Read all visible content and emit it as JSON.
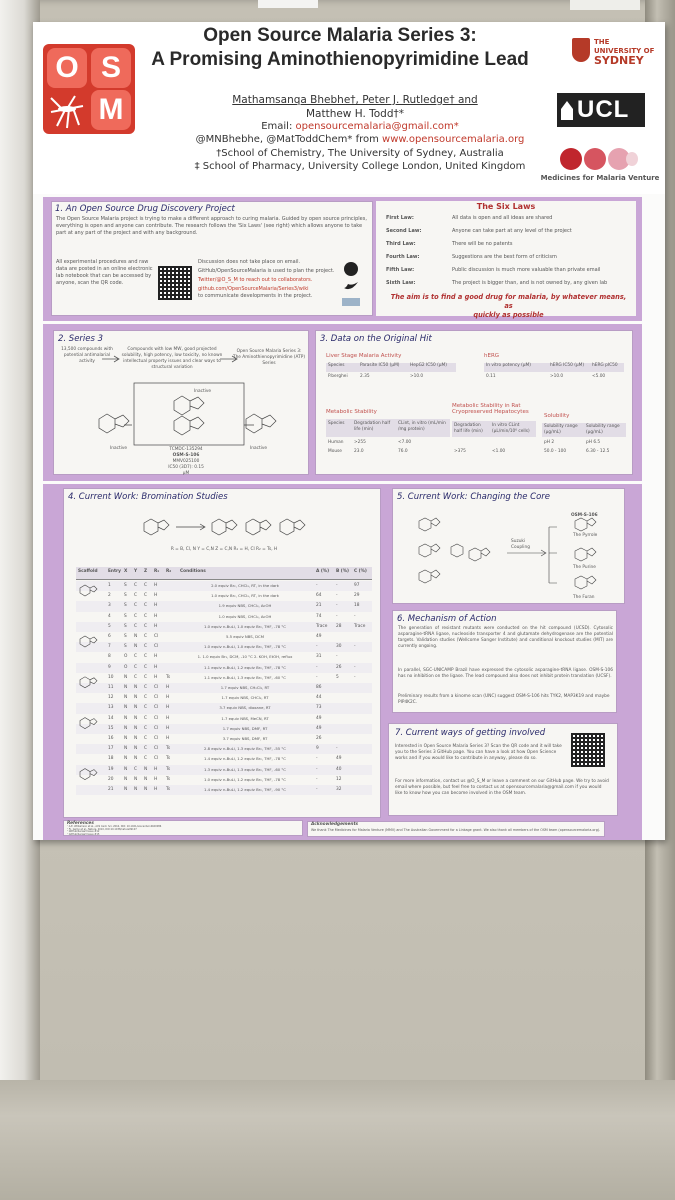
{
  "poster": {
    "logo": {
      "letters": [
        "O",
        "S",
        "M"
      ],
      "icon": "mosquito-icon",
      "color": "#d33a2c"
    },
    "title_lines": [
      "Open Source Malaria Series 3:",
      "A Promising Aminothienopyrimidine Lead"
    ],
    "authors": [
      "Mathamsanqa Bhebhe†, Peter J. Rutledge† and",
      "Matthew H. Todd†*"
    ],
    "email_label": "Email:",
    "email": "opensourcemalaria@gmail.com*",
    "social_prefix": "@MNBhebhe, @MatToddChem* from",
    "website": "www.opensourcemalaria.org",
    "affiliation_1": "†School of Chemistry, The University of Sydney, Australia",
    "affiliation_2": "‡ School of Pharmacy, University College London, United Kingdom",
    "sydney": {
      "line1": "THE UNIVERSITY OF",
      "line2": "SYDNEY"
    },
    "ucl": "UCL",
    "mmv_label": "Medicines for Malaria Venture",
    "colors": {
      "panel": "#c9a6d6",
      "accent_red": "#b03030",
      "osm_red": "#d33a2c"
    }
  },
  "section1": {
    "title": "1. An Open Source Drug Discovery Project",
    "intro": "The Open Source Malaria project is trying to make a different approach to curing malaria. Guided by open source principles, everything is open and anyone can contribute. The research follows the 'Six Laws' (see right) which allows anyone to take part at any part of the project and with any background.",
    "left_text": "All experimental procedures and raw data are posted in an online electronic lab notebook that can be accessed by anyone, scan the QR code.",
    "right_text_1": "Discussion does not take place on email.",
    "right_text_2": "GitHub/OpenSourceMalaria is used to plan the project.",
    "right_text_3": "Twitter/@O_S_M to reach out to collaborators.",
    "right_text_4": "github.com/OpenSourceMalaria/Series3/wiki",
    "right_text_5": "to communicate developments in the project.",
    "six_laws_title": "The Six Laws",
    "laws": [
      {
        "label": "First Law:",
        "text": "All data is open and all ideas are shared"
      },
      {
        "label": "Second Law:",
        "text": "Anyone can take part at any level of the project"
      },
      {
        "label": "Third Law:",
        "text": "There will be no patents"
      },
      {
        "label": "Fourth Law:",
        "text": "Suggestions are the best form of criticism"
      },
      {
        "label": "Fifth Law:",
        "text": "Public discussion is much more valuable than private email"
      },
      {
        "label": "Sixth Law:",
        "text": "The project is bigger than, and is not owned by, any given lab"
      }
    ],
    "aim_1": "The aim is to find a good drug for malaria, by whatever means, as",
    "aim_2": "quickly as possible"
  },
  "section2": {
    "title": "2. Series 3",
    "flow": [
      "13,500 compounds with potential antimalarial activity",
      "Compounds with low MW, good projected solubility, high potency, low toxicity, no known intellectual property issues and clear ways to structural variation",
      "Open Source Malaria Series 3: The Aminothienopyrimidine (ATP) Series"
    ],
    "labels": [
      "Inactive",
      "Inactive",
      "Inactive"
    ],
    "compound": [
      "TCMDC-135294",
      "OSM-S-106",
      "MMV025100",
      "IC50 (3D7): 0.15 µM"
    ]
  },
  "section3": {
    "title": "3. Data on the Original Hit",
    "liver_title": "Liver Stage Malaria Activity",
    "liver_headers": [
      "Species",
      "Parasite IC50 (µM)",
      "HepG2 IC50 (µM)"
    ],
    "liver_row": [
      "P.berghei",
      "2.35",
      ">10.0"
    ],
    "herg_title": "hERG",
    "herg_headers": [
      "In vitro potency (µM)",
      "hERG IC50 (µM)",
      "hERG pIC50"
    ],
    "herg_row": [
      "0.11",
      ">10.0",
      "<5.00"
    ],
    "metab_title": "Metabolic Stability",
    "metab_headers": [
      "Species",
      "Degradation half life (min)",
      "CLint, in vitro (mL/min /mg protein)"
    ],
    "metab_rows": [
      [
        "Human",
        ">255",
        "<7.00"
      ],
      [
        "Mouse",
        "23.0",
        "76.0"
      ]
    ],
    "rat_title": "Metabolic Stability in Rat Cryopreserved Hepatocytes",
    "rat_headers": [
      "Degradation half life (min)",
      "In vitro CLint (µL/min/10⁶ cells)"
    ],
    "rat_row": [
      ">375",
      "<1.00"
    ],
    "sol_title": "Solubility",
    "sol_headers": [
      "Solubility range (µg/mL)",
      "Solubility range (µg/mL)"
    ],
    "sol_rows": [
      [
        "pH 2",
        "pH 6.5"
      ],
      [
        "50.0 - 100",
        "6.30 - 12.5"
      ]
    ]
  },
  "section4": {
    "title": "4. Current Work: Bromination Studies",
    "scheme_caption": "R = B, Cl, N    Y = C,N    Z = C,N    R₁ = H, Cl    R₂ = Ts, H",
    "headers": [
      "Scaffold",
      "Entry",
      "X",
      "Y",
      "Z",
      "R₁",
      "R₂",
      "Conditions",
      "A (%)",
      "B (%)",
      "C (%)"
    ],
    "rows": [
      [
        "1",
        "S",
        "C",
        "C",
        "H",
        "",
        "2.0 equiv Br₂, CHCl₃, RT, in the dark",
        "-",
        "-",
        "97"
      ],
      [
        "2",
        "S",
        "C",
        "C",
        "H",
        "",
        "1.0 equiv Br₂, CHCl₃, RT, in the dark",
        "64",
        "-",
        "29"
      ],
      [
        "3",
        "S",
        "C",
        "C",
        "H",
        "",
        "1.9 equiv NBS, CHCl₃, AcOH",
        "21",
        "-",
        "18"
      ],
      [
        "4",
        "S",
        "C",
        "C",
        "H",
        "",
        "1.0 equiv NBS, CHCl₃, AcOH",
        "74",
        "-",
        "-"
      ],
      [
        "5",
        "S",
        "C",
        "C",
        "H",
        "",
        "1.0 equiv n-BuLi, 1.0 equiv Br₂, THF, -78 °C",
        "Trace",
        "28",
        "Trace"
      ],
      [
        "6",
        "S",
        "N",
        "C",
        "Cl",
        "",
        "5.5 equiv NBS, DCM",
        "49",
        "",
        ""
      ],
      [
        "7",
        "S",
        "N",
        "C",
        "Cl",
        "",
        "1.0 equiv n-BuLi, 1.0 equiv Br₂, THF, -78 °C",
        "-",
        "30",
        "-"
      ],
      [
        "8",
        "O",
        "C",
        "C",
        "H",
        "",
        "1. 1.0 equiv Br₂, DCM, -10 °C  2. KOH, EtOH, reflux",
        "31",
        "-",
        ""
      ],
      [
        "9",
        "O",
        "C",
        "C",
        "H",
        "",
        "1.1 equiv n-BuLi, 1.2 equiv Br₂, THF, -78 °C",
        "-",
        "26",
        "-"
      ],
      [
        "10",
        "N",
        "C",
        "C",
        "H",
        "Ts",
        "1.1 equiv n-BuLi, 1.3 equiv Br₂, THF, -60 °C",
        "-",
        "5",
        "-"
      ],
      [
        "11",
        "N",
        "N",
        "C",
        "Cl",
        "H",
        "1.7 equiv NBS, CH₂Cl₂, RT",
        "86",
        "",
        ""
      ],
      [
        "12",
        "N",
        "N",
        "C",
        "Cl",
        "H",
        "1.7 equiv NBS, CHCl₃, RT",
        "44",
        "",
        ""
      ],
      [
        "13",
        "N",
        "N",
        "C",
        "Cl",
        "H",
        "3.7 equiv NBS, dioxane, RT",
        "73",
        "",
        ""
      ],
      [
        "14",
        "N",
        "N",
        "C",
        "Cl",
        "H",
        "1.7 equiv NBS, MeCN, RT",
        "49",
        "",
        ""
      ],
      [
        "15",
        "N",
        "N",
        "C",
        "Cl",
        "H",
        "1.7 equiv NBS, DMF, RT",
        "49",
        "",
        ""
      ],
      [
        "16",
        "N",
        "N",
        "C",
        "Cl",
        "H",
        "3.7 equiv NBS, DMF, RT",
        "26",
        "",
        ""
      ],
      [
        "17",
        "N",
        "N",
        "C",
        "Cl",
        "Ts",
        "2.8 equiv n-BuLi, 1.3 equiv Br₂, THF, -55 °C",
        "9",
        "-",
        ""
      ],
      [
        "18",
        "N",
        "N",
        "C",
        "Cl",
        "Ts",
        "1.4 equiv n-BuLi, 1.2 equiv Br₂, THF, -78 °C",
        "-",
        "49",
        ""
      ],
      [
        "19",
        "N",
        "C",
        "N",
        "H",
        "Ts",
        "1.3 equiv n-BuLi, 1.3 equiv Br₂, THF, -60 °C",
        "-",
        "40",
        ""
      ],
      [
        "20",
        "N",
        "N",
        "N",
        "H",
        "Ts",
        "1.0 equiv n-BuLi, 1.2 equiv Br₂, THF, -78 °C",
        "-",
        "12",
        ""
      ],
      [
        "21",
        "N",
        "N",
        "N",
        "H",
        "Ts",
        "1.4 equiv n-BuLi, 1.2 equiv Br₂, THF, -90 °C",
        "-",
        "32",
        ""
      ]
    ],
    "references_title": "References",
    "references": [
      "¹ A.E. Williamson et al., ACS Cent. Sci. 2016, DOI: 10.1021/acscentsci.6b00086",
      "² F.J. Gamo et al., Nature, 2010, DOI:10.1038/nature09107",
      "³ GitHub/Series3 Issue #12",
      "⁴ GitHub/Series3 Issue #15",
      "⁵ GitHub/Series3 Issue #17",
      "⁶ GitHub/Series3 Issue #17"
    ]
  },
  "section5": {
    "title": "5. Current Work: Changing the Core",
    "labels": [
      "Suzuki Coupling",
      "OSM-S-106",
      "The Pyrrole",
      "The Purine",
      "The Furan"
    ]
  },
  "section6": {
    "title": "6. Mechanism of Action",
    "p1": "The generation of resistant mutants were conducted on the hit compound (UCSD). Cytosolic asparagine-tRNA ligase, nucleoside transporter 4 and glutamate dehydrogenase are the potential targets. Validation studies (Wellcome Sanger Institute) and conditional knockout studies (MIT) are currently ongoing.",
    "p2": "In parallel, SGC-UNICAMP Brazil have expressed the cytosolic asparagine-tRNA ligase. OSM-S-106 has no inhibition on the ligase. The lead compound also does not inhibit protein translation (UCSF).",
    "p3": "Preliminary results from a kinome scan (UNC) suggest OSM-S-106 hits TYK2, MAP3K19 and maybe PIP4K2C."
  },
  "section7": {
    "title": "7. Current ways of getting involved",
    "p1": "Interested in Open Source Malaria Series 3? Scan the QR code and it will take you to the Series 3 GitHub page. You can have a look at how Open Science works and if you would like to contribute in anyway, please do so.",
    "p2": "For more information, contact us @O_S_M or leave a comment on our GitHub page. We try to avoid email where possible, but feel free to contact us at opensourcemalaria@gmail.com if you would like to know how you can become involved in the OSM team."
  },
  "acknowledgements": {
    "title": "Acknowledgements",
    "text": "We thank The Medicines for Malaria Venture (MMV) and The Australian Government for a Linkage grant. We also thank all members of the OSM team (opensourcemalaria.org)."
  }
}
